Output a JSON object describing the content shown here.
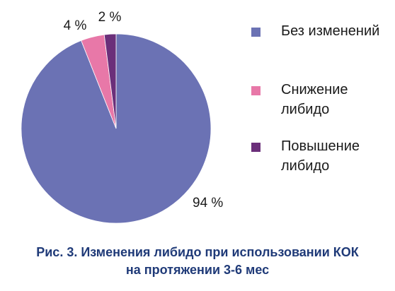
{
  "chart_data": {
    "type": "pie",
    "title": "",
    "categories": [
      "Без изменений",
      "Снижение либидо",
      "Повышение либидо"
    ],
    "values": [
      94,
      4,
      2
    ],
    "unit": "%",
    "data_labels": [
      "94 %",
      "4 %",
      "2 %"
    ],
    "colors": [
      "#6b72b4",
      "#e878a8",
      "#6b2f7a"
    ],
    "start_angle": "12 o'clock",
    "direction": "clockwise",
    "legend_position": "right"
  },
  "legend": {
    "items": [
      {
        "lines": [
          "Без изменений"
        ],
        "color": "#6b72b4"
      },
      {
        "lines": [
          "Снижение",
          "либидо"
        ],
        "color": "#e878a8"
      },
      {
        "lines": [
          "Повышение",
          "либидо"
        ],
        "color": "#6b2f7a"
      }
    ]
  },
  "caption": {
    "line1": "Рис. 3. Изменения либидо при использовании КОК",
    "line2": "на протяжении 3-6 мес"
  }
}
